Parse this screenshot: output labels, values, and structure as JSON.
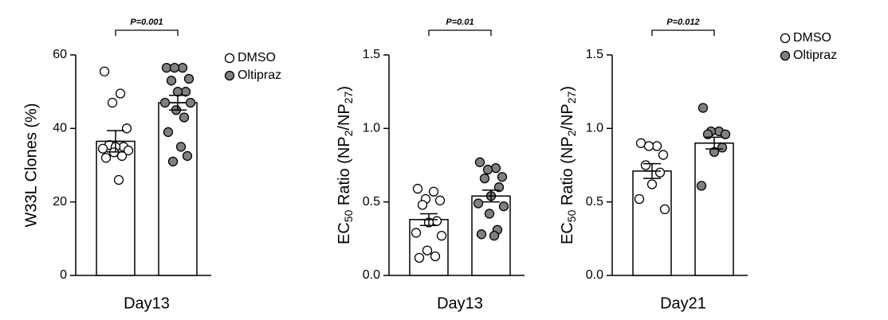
{
  "chart_data": [
    {
      "type": "bar",
      "ylabel": "W33L Clones (%)",
      "xlabel": "Day13",
      "annotation": "P=0.001",
      "ylim": [
        0,
        60
      ],
      "yticks": [
        0,
        20,
        40,
        60
      ],
      "legend": "upper right",
      "series": [
        {
          "name": "DMSO",
          "color": "#ffffff",
          "mean": 36.5,
          "error": 2.9,
          "values": [
            55.5,
            49.5,
            47,
            40,
            35.5,
            35,
            35,
            34.5,
            34,
            33.5,
            32.5,
            32,
            26
          ]
        },
        {
          "name": "Oltipraz",
          "color": "#808080",
          "mean": 47,
          "error": 2,
          "values": [
            56.5,
            56.5,
            56.5,
            53.5,
            53,
            50,
            50,
            47,
            47,
            45,
            43,
            39,
            35,
            32.5,
            31
          ]
        }
      ]
    },
    {
      "type": "bar",
      "ylabel": "EC50 Ratio (NP2/NP27)",
      "xlabel": "Day13",
      "annotation": "P=0.01",
      "ylim": [
        0,
        1.5
      ],
      "yticks": [
        {
          "value": 0,
          "label": "0.0"
        },
        0.5,
        {
          "value": 1,
          "label": "1.0"
        },
        1.5
      ],
      "series": [
        {
          "color": "#ffffff",
          "mean": 0.38,
          "error": 0.04,
          "values": [
            0.59,
            0.57,
            0.52,
            0.51,
            0.48,
            0.37,
            0.36,
            0.29,
            0.27,
            0.17,
            0.13,
            0.12
          ]
        },
        {
          "color": "#808080",
          "mean": 0.54,
          "error": 0.04,
          "values": [
            0.77,
            0.73,
            0.72,
            0.67,
            0.66,
            0.6,
            0.54,
            0.49,
            0.47,
            0.42,
            0.31,
            0.28,
            0.27
          ]
        }
      ]
    },
    {
      "type": "bar",
      "ylabel": "EC50 Ratio (NP2/NP27)",
      "xlabel": "Day21",
      "annotation": "P=0.012",
      "ylim": [
        0,
        1.5
      ],
      "yticks": [
        {
          "value": 0,
          "label": "0.0"
        },
        0.5,
        {
          "value": 1,
          "label": "1.0"
        },
        1.5
      ],
      "legend": "upper right",
      "series": [
        {
          "name": "DMSO",
          "color": "#ffffff",
          "mean": 0.71,
          "error": 0.05,
          "values": [
            0.9,
            0.88,
            0.88,
            0.82,
            0.75,
            0.7,
            0.62,
            0.52,
            0.45
          ]
        },
        {
          "name": "Oltipraz",
          "color": "#808080",
          "mean": 0.9,
          "error": 0.04,
          "values": [
            1.14,
            0.98,
            0.98,
            0.96,
            0.96,
            0.87,
            0.84,
            0.61
          ]
        }
      ]
    }
  ]
}
